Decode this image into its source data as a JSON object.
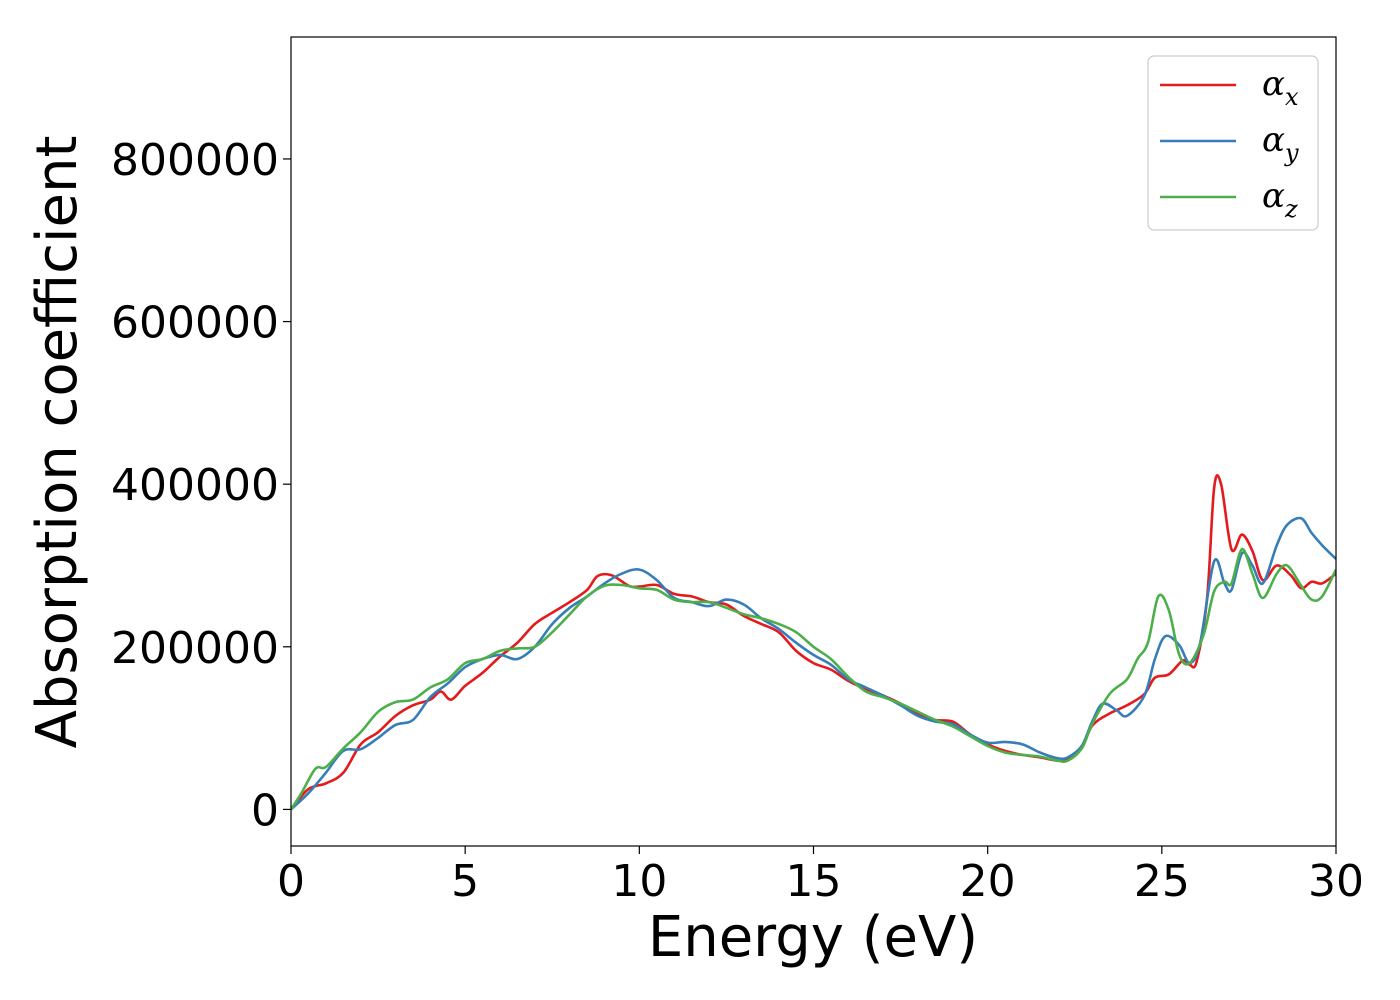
{
  "chart_data": {
    "type": "line",
    "xlabel": "Energy (eV)",
    "ylabel": "Absorption coefficient",
    "xlim": [
      0,
      30
    ],
    "ylim": [
      -45000,
      950000
    ],
    "xticks": [
      "0",
      "5",
      "10",
      "15",
      "20",
      "25",
      "30"
    ],
    "yticks": [
      "0",
      "200000",
      "400000",
      "600000",
      "800000"
    ],
    "grid": false,
    "legend_position": "top-right",
    "series": [
      {
        "name": "α",
        "subscript": "x",
        "color": "#e41a1c",
        "points": [
          [
            0,
            0
          ],
          [
            0.5,
            25000
          ],
          [
            1,
            32000
          ],
          [
            1.5,
            45000
          ],
          [
            2,
            80000
          ],
          [
            2.5,
            95000
          ],
          [
            3,
            115000
          ],
          [
            3.5,
            128000
          ],
          [
            4,
            135000
          ],
          [
            4.3,
            145000
          ],
          [
            4.6,
            135000
          ],
          [
            5,
            152000
          ],
          [
            5.5,
            168000
          ],
          [
            6,
            188000
          ],
          [
            6.5,
            205000
          ],
          [
            7,
            228000
          ],
          [
            7.5,
            242000
          ],
          [
            8,
            255000
          ],
          [
            8.5,
            270000
          ],
          [
            8.8,
            287000
          ],
          [
            9.2,
            288000
          ],
          [
            9.7,
            275000
          ],
          [
            10,
            274000
          ],
          [
            10.5,
            276000
          ],
          [
            11,
            265000
          ],
          [
            11.5,
            262000
          ],
          [
            12,
            255000
          ],
          [
            12.5,
            252000
          ],
          [
            13,
            238000
          ],
          [
            13.5,
            228000
          ],
          [
            14,
            218000
          ],
          [
            14.5,
            195000
          ],
          [
            15,
            180000
          ],
          [
            15.5,
            172000
          ],
          [
            16,
            158000
          ],
          [
            16.5,
            148000
          ],
          [
            17,
            140000
          ],
          [
            17.5,
            130000
          ],
          [
            18,
            118000
          ],
          [
            18.5,
            110000
          ],
          [
            19,
            108000
          ],
          [
            19.5,
            92000
          ],
          [
            20,
            80000
          ],
          [
            20.5,
            72000
          ],
          [
            21,
            67000
          ],
          [
            21.5,
            64000
          ],
          [
            22,
            60000
          ],
          [
            22.3,
            62000
          ],
          [
            22.7,
            75000
          ],
          [
            23,
            103000
          ],
          [
            23.5,
            118000
          ],
          [
            24,
            128000
          ],
          [
            24.5,
            142000
          ],
          [
            24.8,
            162000
          ],
          [
            25.2,
            166000
          ],
          [
            25.6,
            183000
          ],
          [
            25.8,
            178000
          ],
          [
            26,
            182000
          ],
          [
            26.3,
            260000
          ],
          [
            26.5,
            395000
          ],
          [
            26.7,
            400000
          ],
          [
            27,
            320000
          ],
          [
            27.3,
            338000
          ],
          [
            27.6,
            318000
          ],
          [
            27.9,
            282000
          ],
          [
            28.3,
            300000
          ],
          [
            28.7,
            288000
          ],
          [
            29,
            272000
          ],
          [
            29.3,
            280000
          ],
          [
            29.6,
            278000
          ],
          [
            30,
            290000
          ]
        ]
      },
      {
        "name": "α",
        "subscript": "y",
        "color": "#377eb8",
        "points": [
          [
            0,
            0
          ],
          [
            0.5,
            20000
          ],
          [
            1,
            45000
          ],
          [
            1.5,
            72000
          ],
          [
            2,
            74000
          ],
          [
            2.5,
            88000
          ],
          [
            3,
            104000
          ],
          [
            3.5,
            110000
          ],
          [
            4,
            138000
          ],
          [
            4.5,
            155000
          ],
          [
            5,
            175000
          ],
          [
            5.5,
            185000
          ],
          [
            6,
            190000
          ],
          [
            6.5,
            185000
          ],
          [
            7,
            200000
          ],
          [
            7.5,
            228000
          ],
          [
            8,
            248000
          ],
          [
            8.5,
            262000
          ],
          [
            9,
            278000
          ],
          [
            9.5,
            290000
          ],
          [
            10,
            295000
          ],
          [
            10.5,
            282000
          ],
          [
            11,
            260000
          ],
          [
            11.5,
            255000
          ],
          [
            12,
            250000
          ],
          [
            12.5,
            258000
          ],
          [
            13,
            252000
          ],
          [
            13.5,
            235000
          ],
          [
            14,
            222000
          ],
          [
            14.5,
            205000
          ],
          [
            15,
            190000
          ],
          [
            15.5,
            178000
          ],
          [
            16,
            160000
          ],
          [
            16.5,
            150000
          ],
          [
            17,
            140000
          ],
          [
            17.5,
            128000
          ],
          [
            18,
            115000
          ],
          [
            18.5,
            108000
          ],
          [
            19,
            105000
          ],
          [
            19.5,
            92000
          ],
          [
            20,
            82000
          ],
          [
            20.5,
            83000
          ],
          [
            21,
            80000
          ],
          [
            21.5,
            70000
          ],
          [
            22,
            63000
          ],
          [
            22.3,
            64000
          ],
          [
            22.7,
            78000
          ],
          [
            23,
            108000
          ],
          [
            23.3,
            130000
          ],
          [
            23.7,
            122000
          ],
          [
            24,
            115000
          ],
          [
            24.5,
            140000
          ],
          [
            24.8,
            185000
          ],
          [
            25.1,
            213000
          ],
          [
            25.5,
            202000
          ],
          [
            25.8,
            180000
          ],
          [
            26.1,
            205000
          ],
          [
            26.5,
            305000
          ],
          [
            26.8,
            278000
          ],
          [
            27,
            270000
          ],
          [
            27.3,
            315000
          ],
          [
            27.6,
            300000
          ],
          [
            27.9,
            278000
          ],
          [
            28.3,
            325000
          ],
          [
            28.6,
            350000
          ],
          [
            29,
            358000
          ],
          [
            29.3,
            340000
          ],
          [
            29.6,
            325000
          ],
          [
            30,
            308000
          ]
        ]
      },
      {
        "name": "α",
        "subscript": "z",
        "color": "#4daf4a",
        "points": [
          [
            0,
            0
          ],
          [
            0.3,
            20000
          ],
          [
            0.7,
            50000
          ],
          [
            1,
            52000
          ],
          [
            1.5,
            75000
          ],
          [
            2,
            95000
          ],
          [
            2.5,
            120000
          ],
          [
            3,
            132000
          ],
          [
            3.5,
            135000
          ],
          [
            4,
            150000
          ],
          [
            4.5,
            160000
          ],
          [
            5,
            180000
          ],
          [
            5.5,
            185000
          ],
          [
            6,
            195000
          ],
          [
            6.5,
            198000
          ],
          [
            7,
            200000
          ],
          [
            7.5,
            218000
          ],
          [
            8,
            240000
          ],
          [
            8.5,
            262000
          ],
          [
            9,
            275000
          ],
          [
            9.5,
            276000
          ],
          [
            10,
            272000
          ],
          [
            10.5,
            270000
          ],
          [
            11,
            258000
          ],
          [
            11.5,
            255000
          ],
          [
            12,
            255000
          ],
          [
            12.5,
            248000
          ],
          [
            13,
            240000
          ],
          [
            13.5,
            235000
          ],
          [
            14,
            228000
          ],
          [
            14.5,
            218000
          ],
          [
            15,
            200000
          ],
          [
            15.5,
            185000
          ],
          [
            16,
            163000
          ],
          [
            16.5,
            145000
          ],
          [
            17,
            138000
          ],
          [
            17.5,
            130000
          ],
          [
            18,
            120000
          ],
          [
            18.5,
            110000
          ],
          [
            19,
            102000
          ],
          [
            19.5,
            90000
          ],
          [
            20,
            78000
          ],
          [
            20.5,
            70000
          ],
          [
            21,
            67000
          ],
          [
            21.5,
            65000
          ],
          [
            22,
            60000
          ],
          [
            22.3,
            60000
          ],
          [
            22.7,
            75000
          ],
          [
            23,
            105000
          ],
          [
            23.5,
            142000
          ],
          [
            24,
            160000
          ],
          [
            24.3,
            185000
          ],
          [
            24.6,
            205000
          ],
          [
            24.9,
            262000
          ],
          [
            25.2,
            245000
          ],
          [
            25.5,
            190000
          ],
          [
            25.8,
            180000
          ],
          [
            26.2,
            215000
          ],
          [
            26.5,
            268000
          ],
          [
            26.8,
            280000
          ],
          [
            27,
            278000
          ],
          [
            27.3,
            320000
          ],
          [
            27.6,
            290000
          ],
          [
            27.9,
            260000
          ],
          [
            28.3,
            290000
          ],
          [
            28.6,
            300000
          ],
          [
            29,
            275000
          ],
          [
            29.3,
            258000
          ],
          [
            29.6,
            262000
          ],
          [
            30,
            295000
          ]
        ]
      }
    ]
  }
}
